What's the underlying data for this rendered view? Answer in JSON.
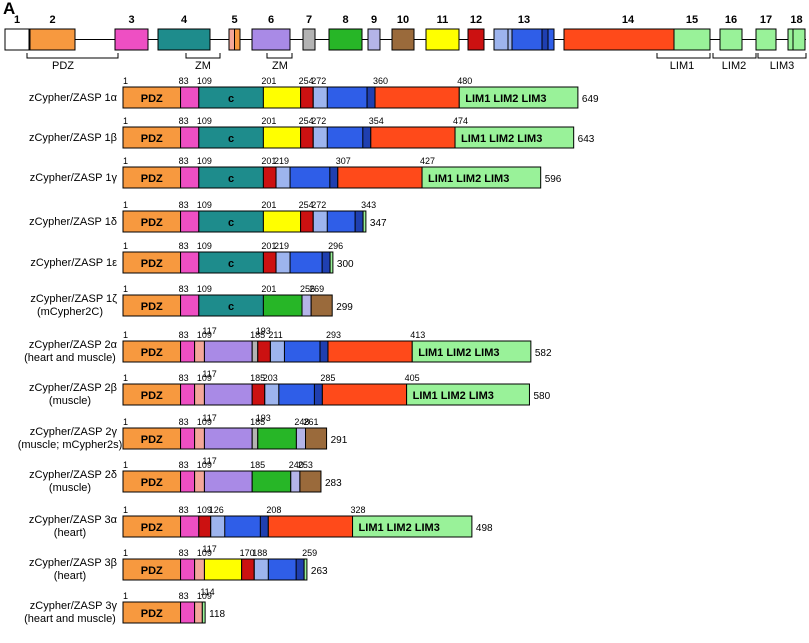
{
  "panel_label": "A",
  "exon_map": {
    "exons": [
      {
        "n": "1",
        "color": "#ffffff"
      },
      {
        "n": "2",
        "color": "#f7993f"
      },
      {
        "n": "3",
        "color": "#ee4fc3"
      },
      {
        "n": "4",
        "color": "#1e8c8c"
      },
      {
        "n": "5",
        "color": "#f4a79a",
        "color2": "#f7993f"
      },
      {
        "n": "6",
        "color": "#a98ae6"
      },
      {
        "n": "7",
        "color": "#b3b3b3"
      },
      {
        "n": "8",
        "color": "#27b627"
      },
      {
        "n": "9",
        "color": "#b4b4e8"
      },
      {
        "n": "10",
        "color": "#9a6a3b"
      },
      {
        "n": "11",
        "color": "#ffff00"
      },
      {
        "n": "12",
        "color": "#cc1111"
      },
      {
        "n": "13",
        "color": "#2f5ee8"
      },
      {
        "n": "14",
        "color": "#ff4a1a"
      },
      {
        "n": "15",
        "color": "#99f299"
      },
      {
        "n": "16",
        "color": "#99f299"
      },
      {
        "n": "17",
        "color": "#99f299"
      },
      {
        "n": "18",
        "color": "#99f299"
      }
    ],
    "brackets": [
      "PDZ",
      "ZM",
      "ZM",
      "LIM1",
      "LIM2",
      "LIM3"
    ]
  },
  "domain_labels": {
    "pdz": "PDZ",
    "c": "c",
    "lim": "LIM1  LIM2  LIM3"
  },
  "isoforms": [
    {
      "name": "zCypher/ZASP 1α",
      "sub": "",
      "length": "649",
      "segments": [
        [
          "pdz",
          1,
          83
        ],
        [
          "ex3",
          83,
          109
        ],
        [
          "ex4",
          109,
          201
        ],
        [
          "ex11",
          201,
          254
        ],
        [
          "ex12",
          254,
          272
        ],
        [
          "ex13",
          272,
          360
        ],
        [
          "ex14",
          360,
          480
        ],
        [
          "lim",
          480,
          649
        ]
      ],
      "positions": [
        "1",
        "83",
        "109",
        "201",
        "254",
        "272",
        "360",
        "480"
      ]
    },
    {
      "name": "zCypher/ZASP 1β",
      "sub": "",
      "length": "643",
      "segments": [
        [
          "pdz",
          1,
          83
        ],
        [
          "ex3",
          83,
          109
        ],
        [
          "ex4",
          109,
          201
        ],
        [
          "ex11",
          201,
          254
        ],
        [
          "ex12",
          254,
          272
        ],
        [
          "ex13",
          272,
          354
        ],
        [
          "ex14",
          354,
          474
        ],
        [
          "lim",
          474,
          643
        ]
      ],
      "positions": [
        "1",
        "83",
        "109",
        "201",
        "254",
        "272",
        "354",
        "474"
      ]
    },
    {
      "name": "zCypher/ZASP 1γ",
      "sub": "",
      "length": "596",
      "segments": [
        [
          "pdz",
          1,
          83
        ],
        [
          "ex3",
          83,
          109
        ],
        [
          "ex4",
          109,
          201
        ],
        [
          "ex12",
          201,
          219
        ],
        [
          "ex13",
          219,
          307
        ],
        [
          "ex14",
          307,
          427
        ],
        [
          "lim",
          427,
          596
        ]
      ],
      "positions": [
        "1",
        "83",
        "109",
        "201",
        "219",
        "307",
        "427"
      ]
    },
    {
      "name": "zCypher/ZASP 1δ",
      "sub": "",
      "length": "347",
      "segments": [
        [
          "pdz",
          1,
          83
        ],
        [
          "ex3",
          83,
          109
        ],
        [
          "ex4",
          109,
          201
        ],
        [
          "ex11",
          201,
          254
        ],
        [
          "ex12",
          254,
          272
        ],
        [
          "ex13",
          272,
          343
        ],
        [
          "lim",
          343,
          347
        ]
      ],
      "positions": [
        "1",
        "83",
        "109",
        "201",
        "254",
        "272",
        "343"
      ]
    },
    {
      "name": "zCypher/ZASP 1ε",
      "sub": "",
      "length": "300",
      "segments": [
        [
          "pdz",
          1,
          83
        ],
        [
          "ex3",
          83,
          109
        ],
        [
          "ex4",
          109,
          201
        ],
        [
          "ex12",
          201,
          219
        ],
        [
          "ex13",
          219,
          296
        ],
        [
          "lim",
          296,
          300
        ]
      ],
      "positions": [
        "1",
        "83",
        "109",
        "201",
        "219",
        "296"
      ]
    },
    {
      "name": "zCypher/ZASP 1ζ",
      "sub": "(mCypher2C)",
      "length": "299",
      "segments": [
        [
          "pdz",
          1,
          83
        ],
        [
          "ex3",
          83,
          109
        ],
        [
          "ex4",
          109,
          201
        ],
        [
          "ex8",
          201,
          256
        ],
        [
          "ex9",
          256,
          269
        ],
        [
          "ex10",
          269,
          299
        ]
      ],
      "positions": [
        "1",
        "83",
        "109",
        "201",
        "256",
        "269"
      ]
    },
    {
      "name": "zCypher/ZASP 2α",
      "sub": "(heart and muscle)",
      "length": "582",
      "segments": [
        [
          "pdz",
          1,
          83
        ],
        [
          "ex3",
          83,
          103
        ],
        [
          "ex5",
          103,
          117
        ],
        [
          "ex6",
          117,
          185
        ],
        [
          "ex7",
          185,
          193
        ],
        [
          "ex12",
          193,
          211
        ],
        [
          "ex13",
          211,
          293
        ],
        [
          "ex14",
          293,
          413
        ],
        [
          "lim",
          413,
          582
        ]
      ],
      "positions": [
        "1",
        "83",
        "109",
        "117",
        "185",
        "193",
        "211",
        "293",
        "413"
      ]
    },
    {
      "name": "zCypher/ZASP 2β",
      "sub": "(muscle)",
      "length": "580",
      "segments": [
        [
          "pdz",
          1,
          83
        ],
        [
          "ex3",
          83,
          103
        ],
        [
          "ex5",
          103,
          117
        ],
        [
          "ex6",
          117,
          185
        ],
        [
          "ex12",
          185,
          203
        ],
        [
          "ex13",
          203,
          285
        ],
        [
          "ex14",
          285,
          405
        ],
        [
          "lim",
          405,
          580
        ]
      ],
      "positions": [
        "1",
        "83",
        "109",
        "117",
        "185",
        "203",
        "285",
        "405"
      ]
    },
    {
      "name": "zCypher/ZASP 2γ",
      "sub": "(muscle; mCypher2s)",
      "length": "291",
      "segments": [
        [
          "pdz",
          1,
          83
        ],
        [
          "ex3",
          83,
          103
        ],
        [
          "ex5",
          103,
          117
        ],
        [
          "ex6",
          117,
          185
        ],
        [
          "ex7",
          185,
          193
        ],
        [
          "ex8",
          193,
          248
        ],
        [
          "ex9",
          248,
          261
        ],
        [
          "ex10",
          261,
          291
        ]
      ],
      "positions": [
        "1",
        "83",
        "109",
        "117",
        "185",
        "193",
        "248",
        "261"
      ]
    },
    {
      "name": "zCypher/ZASP 2δ",
      "sub": "(muscle)",
      "length": "283",
      "segments": [
        [
          "pdz",
          1,
          83
        ],
        [
          "ex3",
          83,
          103
        ],
        [
          "ex5",
          103,
          117
        ],
        [
          "ex6",
          117,
          185
        ],
        [
          "ex8",
          185,
          240
        ],
        [
          "ex9",
          240,
          253
        ],
        [
          "ex10",
          253,
          283
        ]
      ],
      "positions": [
        "1",
        "83",
        "109",
        "117",
        "185",
        "240",
        "253"
      ]
    },
    {
      "name": "zCypher/ZASP 3α",
      "sub": "(heart)",
      "length": "498",
      "segments": [
        [
          "pdz",
          1,
          83
        ],
        [
          "ex3",
          83,
          109
        ],
        [
          "ex12",
          109,
          126
        ],
        [
          "ex13",
          126,
          208
        ],
        [
          "ex14",
          208,
          328
        ],
        [
          "lim",
          328,
          498
        ]
      ],
      "positions": [
        "1",
        "83",
        "109",
        "126",
        "208",
        "328"
      ]
    },
    {
      "name": "zCypher/ZASP 3β",
      "sub": "(heart)",
      "length": "263",
      "segments": [
        [
          "pdz",
          1,
          83
        ],
        [
          "ex3",
          83,
          103
        ],
        [
          "ex5",
          103,
          117
        ],
        [
          "ex11",
          117,
          170
        ],
        [
          "ex12",
          170,
          188
        ],
        [
          "ex13",
          188,
          259
        ],
        [
          "lim",
          259,
          263
        ]
      ],
      "positions": [
        "1",
        "83",
        "109",
        "117",
        "170",
        "188",
        "259"
      ]
    },
    {
      "name": "zCypher/ZASP 3γ",
      "sub": "(heart and muscle)",
      "length": "118",
      "segments": [
        [
          "pdz",
          1,
          83
        ],
        [
          "ex3",
          83,
          103
        ],
        [
          "ex5",
          103,
          114
        ],
        [
          "lim",
          114,
          118
        ]
      ],
      "positions": [
        "1",
        "83",
        "109",
        "114"
      ]
    }
  ],
  "colors": {
    "pdz": "#f7993f",
    "ex3": "#ee4fc3",
    "ex4": "#1e8c8c",
    "ex5": "#f4a79a",
    "ex6": "#a98ae6",
    "ex7": "#b3b3b3",
    "ex8": "#27b627",
    "ex9": "#b4b4e8",
    "ex10": "#9a6a3b",
    "ex11": "#ffff00",
    "ex12": "#cc1111",
    "ex13": "#2f5ee8",
    "ex13light": "#9db4ee",
    "ex13dark": "#1f3fb0",
    "ex14": "#ff4a1a",
    "lim": "#99f299"
  }
}
